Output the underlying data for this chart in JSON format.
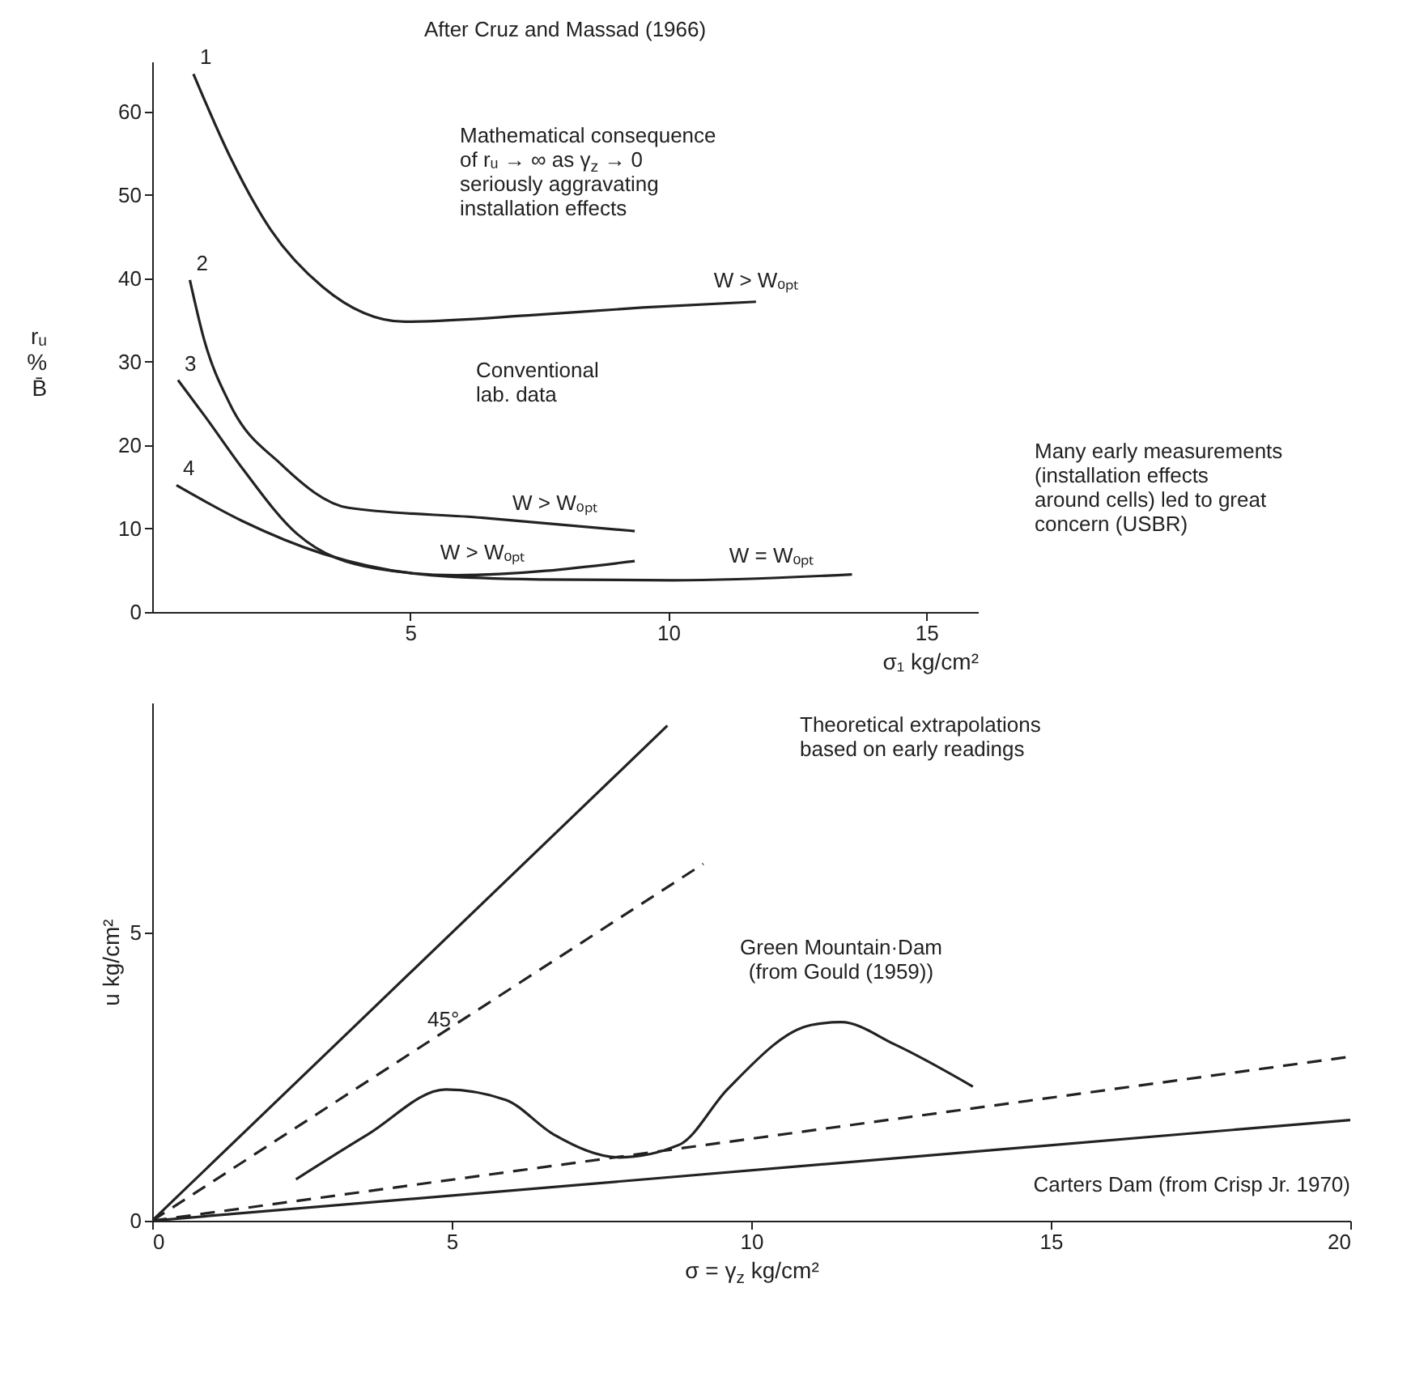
{
  "chart_data": [
    {
      "type": "line",
      "title": "After Cruz and Massad (1966)",
      "xlabel": "σ₁ kg/cm²",
      "ylabel": "rᵤ\n%\nB̄",
      "xlim": [
        0,
        16
      ],
      "ylim": [
        0,
        66
      ],
      "xticks": [
        5,
        10,
        15
      ],
      "yticks": [
        0,
        10,
        20,
        30,
        40,
        50,
        60
      ],
      "series": [
        {
          "name": "1",
          "color": "#222222",
          "x": [
            0.8,
            1.5,
            2.3,
            3.3,
            4.9,
            7.4,
            9.5,
            11.7
          ],
          "values": [
            64.5,
            54.7,
            45.8,
            39,
            34.8,
            35.6,
            36.5,
            37.2
          ]
        },
        {
          "name": "2",
          "color": "#222222",
          "x": [
            0.73,
            1.0,
            1.5,
            2.5,
            3.8,
            6.4,
            9.35
          ],
          "values": [
            39.8,
            32.8,
            25,
            17.7,
            12.5,
            11.3,
            9.7
          ]
        },
        {
          "name": "3",
          "color": "#222222",
          "x": [
            0.5,
            1.03,
            1.75,
            2.8,
            4.35,
            5.9,
            9.35
          ],
          "values": [
            27.8,
            23.4,
            17.2,
            9.4,
            5.2,
            4.4,
            6.1
          ]
        },
        {
          "name": "4",
          "color": "#222222",
          "x": [
            0.47,
            1.75,
            3.3,
            5.4,
            7.5,
            10.1,
            13.56
          ],
          "values": [
            15.2,
            10.9,
            7,
            4.4,
            3.9,
            3.8,
            4.5
          ]
        }
      ],
      "annotations": [
        "Mathematical consequence\nof rᵤ → ∞ as γ$_{z}$ → 0\nseriously aggravating\ninstallation effects",
        "Conventional\nlab. data",
        "Many early measurements\n(installation effects\naround cells) led to great\nconcern (USBR)",
        {
          "text": "W > Wₒₚₜ",
          "x": 11.7,
          "y": 37.2
        },
        {
          "text": "W > Wₒₚₜ",
          "x": 7.8,
          "y": 10.5
        },
        {
          "text": "W > Wₒₚₜ",
          "x": 6.4,
          "y": 4.6
        },
        {
          "text": "W = Wₒₚₜ",
          "x": 12,
          "y": 4.2
        }
      ]
    },
    {
      "type": "line",
      "xlabel": "σ = γ$_{z}$ kg/cm²",
      "ylabel": "u kg/cm²",
      "xlim": [
        0,
        20
      ],
      "ylim": [
        0,
        9
      ],
      "xticks": [
        0,
        5,
        10,
        15,
        20
      ],
      "yticks": [
        0,
        5
      ],
      "series": [
        {
          "color": "#222222",
          "x": [
            0,
            8.6
          ],
          "values": [
            0,
            8.6
          ]
        },
        {
          "color": "#222222",
          "line_style": "dashed",
          "x": [
            0,
            9.2
          ],
          "values": [
            0,
            6.2
          ]
        },
        {
          "name": "Green Mountain·Dam\n(from Gould (1959))",
          "color": "#222222",
          "x": [
            2.4,
            3.6,
            4.9,
            5.9,
            6.7,
            7.8,
            8.8,
            9.6,
            11.0,
            11.5,
            12.4,
            13.7
          ],
          "values": [
            0.72,
            1.5,
            2.28,
            2.1,
            1.5,
            1.1,
            1.32,
            2.28,
            3.4,
            3.45,
            3.06,
            2.33
          ]
        },
        {
          "color": "#222222",
          "line_style": "dashed",
          "x": [
            0,
            20
          ],
          "values": [
            0,
            2.85
          ]
        },
        {
          "name": "Carters Dam (from Crisp Jr. 1970)",
          "color": "#222222",
          "x": [
            0,
            20
          ],
          "values": [
            0,
            1.75
          ]
        }
      ],
      "annotations": [
        "45°",
        "Theoretical extrapolations\nbased on early readings"
      ]
    }
  ]
}
